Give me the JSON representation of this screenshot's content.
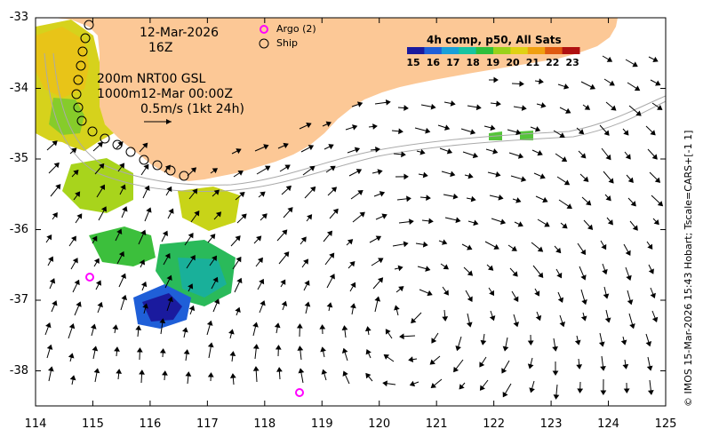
{
  "map": {
    "date_label": "12-Mar-2026",
    "time_label": "16Z",
    "product_line": "200m  NRT00 GSL",
    "product_line2": "1000m12-Mar 00:00Z",
    "scale_label": "0.5m/s (1kt 24h)",
    "legend": {
      "argo_label": "Argo (2)",
      "ship_label": "Ship",
      "argo_color": "#ff00ff",
      "ship_color": "#000000"
    },
    "colorbar": {
      "title": "4h comp, p50, All Sats",
      "ticks": [
        "15",
        "16",
        "17",
        "18",
        "19",
        "20",
        "21",
        "22",
        "23"
      ],
      "colors": [
        "#1a1a9e",
        "#1f5fd8",
        "#19a0d8",
        "#17c4a0",
        "#2fbf3c",
        "#9ad21a",
        "#e0d214",
        "#f0a010",
        "#e05a10",
        "#b01010"
      ]
    },
    "x_axis": {
      "ticks": [
        "114",
        "115",
        "116",
        "117",
        "118",
        "119",
        "120",
        "121",
        "122",
        "123",
        "124",
        "125"
      ]
    },
    "y_axis": {
      "ticks": [
        "-33",
        "-34",
        "-35",
        "-36",
        "-37",
        "-38"
      ]
    },
    "land_color": "#fcc896",
    "credit": "© IMOS 15-Mar-2026 15:43 Hobart; Tscale=CARS+[-1 1]"
  }
}
